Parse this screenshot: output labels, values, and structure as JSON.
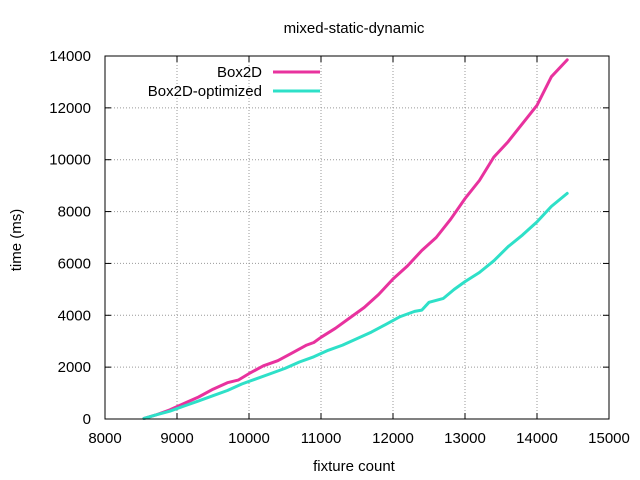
{
  "chart_data": {
    "type": "line",
    "title": "mixed-static-dynamic",
    "xlabel": "fixture count",
    "ylabel": "time (ms)",
    "xlim": [
      8000,
      15000
    ],
    "ylim": [
      0,
      14000
    ],
    "x_ticks": [
      "8000",
      "9000",
      "10000",
      "11000",
      "12000",
      "13000",
      "14000",
      "15000"
    ],
    "y_ticks": [
      "0",
      "2000",
      "4000",
      "6000",
      "8000",
      "10000",
      "12000",
      "14000"
    ],
    "grid": true,
    "legend_position": "top-left",
    "series": [
      {
        "name": "Box2D",
        "color": "#e8329e",
        "points": [
          [
            8540,
            20
          ],
          [
            8700,
            150
          ],
          [
            8900,
            350
          ],
          [
            9100,
            600
          ],
          [
            9300,
            850
          ],
          [
            9500,
            1150
          ],
          [
            9700,
            1400
          ],
          [
            9850,
            1500
          ],
          [
            10000,
            1750
          ],
          [
            10200,
            2050
          ],
          [
            10400,
            2250
          ],
          [
            10600,
            2550
          ],
          [
            10800,
            2850
          ],
          [
            10900,
            2950
          ],
          [
            11000,
            3150
          ],
          [
            11200,
            3500
          ],
          [
            11400,
            3900
          ],
          [
            11600,
            4300
          ],
          [
            11800,
            4800
          ],
          [
            12000,
            5400
          ],
          [
            12200,
            5900
          ],
          [
            12400,
            6500
          ],
          [
            12600,
            7000
          ],
          [
            12800,
            7700
          ],
          [
            13000,
            8500
          ],
          [
            13200,
            9200
          ],
          [
            13400,
            10100
          ],
          [
            13600,
            10700
          ],
          [
            13800,
            11400
          ],
          [
            14000,
            12100
          ],
          [
            14200,
            13200
          ],
          [
            14420,
            13850
          ]
        ]
      },
      {
        "name": "Box2D-optimized",
        "color": "#2ee0c8",
        "points": [
          [
            8540,
            20
          ],
          [
            8700,
            150
          ],
          [
            8900,
            300
          ],
          [
            9100,
            500
          ],
          [
            9300,
            700
          ],
          [
            9500,
            900
          ],
          [
            9700,
            1100
          ],
          [
            9900,
            1350
          ],
          [
            10100,
            1550
          ],
          [
            10300,
            1750
          ],
          [
            10500,
            1950
          ],
          [
            10700,
            2200
          ],
          [
            10900,
            2400
          ],
          [
            11100,
            2650
          ],
          [
            11300,
            2850
          ],
          [
            11500,
            3100
          ],
          [
            11700,
            3350
          ],
          [
            11900,
            3650
          ],
          [
            12100,
            3950
          ],
          [
            12300,
            4150
          ],
          [
            12400,
            4200
          ],
          [
            12500,
            4500
          ],
          [
            12700,
            4650
          ],
          [
            12850,
            5000
          ],
          [
            13000,
            5300
          ],
          [
            13200,
            5650
          ],
          [
            13400,
            6100
          ],
          [
            13600,
            6650
          ],
          [
            13800,
            7100
          ],
          [
            14000,
            7600
          ],
          [
            14200,
            8200
          ],
          [
            14420,
            8700
          ]
        ]
      }
    ]
  }
}
